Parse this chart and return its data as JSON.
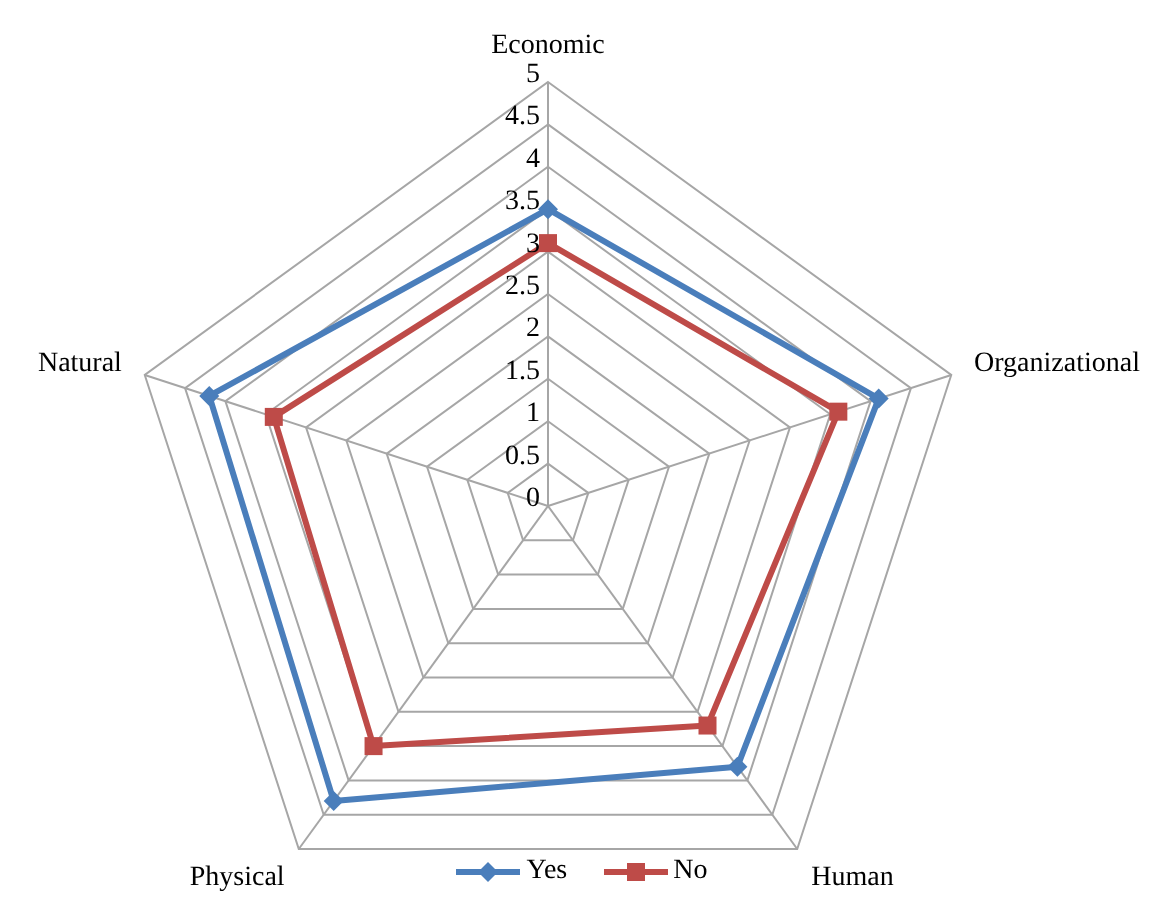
{
  "chart_data": {
    "type": "radar",
    "categories": [
      "Economic",
      "Organizational",
      "Human",
      "Physical",
      "Natural"
    ],
    "series": [
      {
        "name": "Yes",
        "color": "#4a7ebb",
        "marker": "diamond",
        "values": [
          3.5,
          4.1,
          3.8,
          4.3,
          4.2
        ]
      },
      {
        "name": "No",
        "color": "#be4b48",
        "marker": "square",
        "values": [
          3.1,
          3.6,
          3.2,
          3.5,
          3.4
        ]
      }
    ],
    "ylim": [
      0,
      5
    ],
    "yticks": [
      0,
      0.5,
      1,
      1.5,
      2,
      2.5,
      3,
      3.5,
      4,
      4.5,
      5
    ],
    "grid": true,
    "legend": "bottom"
  }
}
